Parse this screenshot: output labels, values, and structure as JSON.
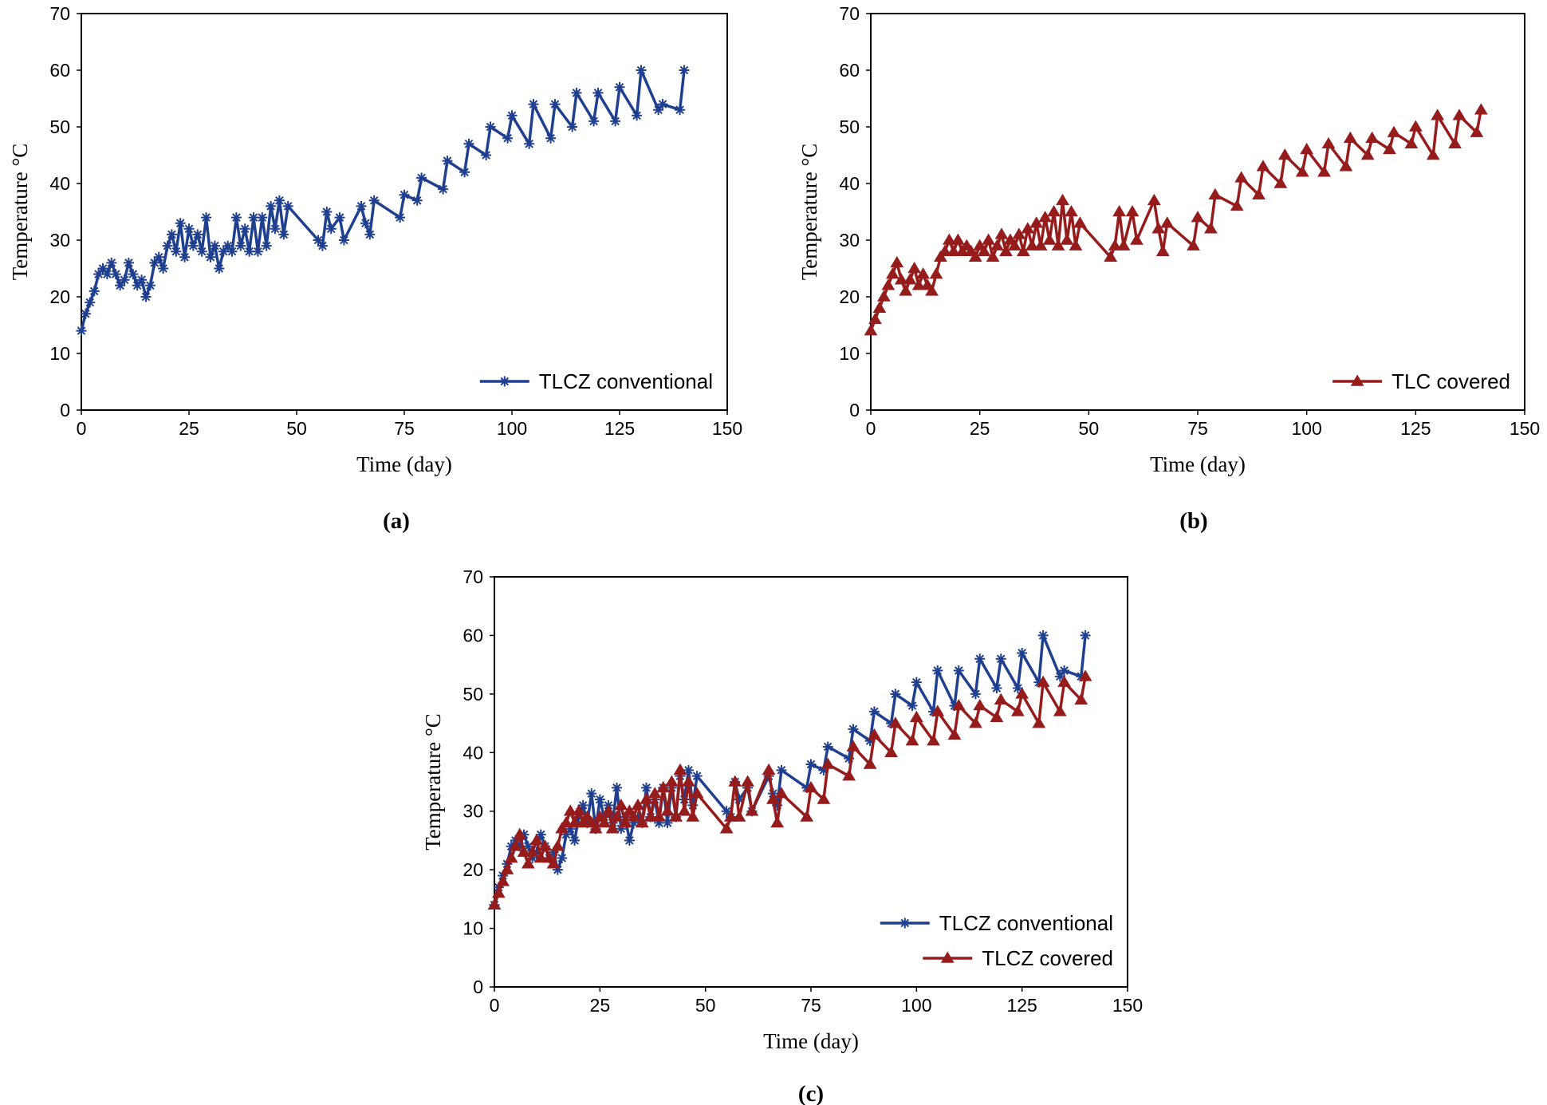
{
  "colors": {
    "conventional": "#1f3f8f",
    "covered": "#961c1c"
  },
  "chart_data": [
    {
      "id": "a",
      "panel_label": "(a)",
      "type": "line",
      "xlabel": "Time (day)",
      "ylabel": "Temperature °C",
      "xlim": [
        0,
        150
      ],
      "ylim": [
        0,
        70
      ],
      "xticks": [
        0,
        25,
        50,
        75,
        100,
        125,
        150
      ],
      "yticks": [
        0,
        10,
        20,
        30,
        40,
        50,
        60,
        70
      ],
      "legend_position": "bottom-right",
      "series": [
        {
          "name": "TLCZ conventional",
          "color": "#1f3f8f",
          "marker": "star",
          "x": [
            0,
            1,
            2,
            3,
            4,
            5,
            6,
            7,
            8,
            9,
            10,
            11,
            12,
            13,
            14,
            15,
            16,
            17,
            18,
            19,
            20,
            21,
            22,
            23,
            24,
            25,
            26,
            27,
            28,
            29,
            30,
            31,
            32,
            33,
            34,
            35,
            36,
            37,
            38,
            39,
            40,
            41,
            42,
            43,
            44,
            45,
            46,
            47,
            48,
            55,
            56,
            57,
            58,
            60,
            61,
            65,
            66,
            67,
            68,
            74,
            75,
            78,
            79,
            84,
            85,
            89,
            90,
            94,
            95,
            99,
            100,
            104,
            105,
            109,
            110,
            114,
            115,
            119,
            120,
            124,
            125,
            129,
            130,
            134,
            135,
            139,
            140
          ],
          "y": [
            14,
            17,
            19,
            21,
            24,
            25,
            24,
            26,
            24,
            22,
            23,
            26,
            24,
            22,
            23,
            20,
            22,
            26,
            27,
            25,
            29,
            31,
            28,
            33,
            27,
            32,
            29,
            31,
            28,
            34,
            27,
            29,
            25,
            28,
            29,
            28,
            34,
            29,
            32,
            28,
            34,
            28,
            34,
            29,
            36,
            32,
            37,
            31,
            36,
            30,
            29,
            35,
            32,
            34,
            30,
            36,
            33,
            31,
            37,
            34,
            38,
            37,
            41,
            39,
            44,
            42,
            47,
            45,
            50,
            48,
            52,
            47,
            54,
            48,
            54,
            50,
            56,
            51,
            56,
            51,
            57,
            52,
            60,
            53,
            54,
            53,
            60
          ]
        }
      ]
    },
    {
      "id": "b",
      "panel_label": "(b)",
      "type": "line",
      "xlabel": "Time (day)",
      "ylabel": "Temperature °C",
      "xlim": [
        0,
        150
      ],
      "ylim": [
        0,
        70
      ],
      "xticks": [
        0,
        25,
        50,
        75,
        100,
        125,
        150
      ],
      "yticks": [
        0,
        10,
        20,
        30,
        40,
        50,
        60,
        70
      ],
      "legend_position": "bottom-right",
      "series": [
        {
          "name": "TLC covered",
          "color": "#961c1c",
          "marker": "triangle",
          "x": [
            0,
            1,
            2,
            3,
            4,
            5,
            6,
            7,
            8,
            9,
            10,
            11,
            12,
            13,
            14,
            15,
            16,
            17,
            18,
            19,
            20,
            21,
            22,
            23,
            24,
            25,
            26,
            27,
            28,
            29,
            30,
            31,
            32,
            33,
            34,
            35,
            36,
            37,
            38,
            39,
            40,
            41,
            42,
            43,
            44,
            45,
            46,
            47,
            48,
            55,
            56,
            57,
            58,
            60,
            61,
            65,
            66,
            67,
            68,
            74,
            75,
            78,
            79,
            84,
            85,
            89,
            90,
            94,
            95,
            99,
            100,
            104,
            105,
            109,
            110,
            114,
            115,
            119,
            120,
            124,
            125,
            129,
            130,
            134,
            135,
            139,
            140
          ],
          "y": [
            14,
            16,
            18,
            20,
            22,
            24,
            26,
            23,
            21,
            23,
            25,
            22,
            24,
            22,
            21,
            24,
            27,
            28,
            30,
            28,
            30,
            28,
            29,
            28,
            27,
            29,
            28,
            30,
            27,
            29,
            31,
            28,
            30,
            29,
            31,
            28,
            32,
            29,
            33,
            29,
            34,
            30,
            35,
            29,
            37,
            30,
            35,
            29,
            33,
            27,
            29,
            35,
            29,
            35,
            30,
            37,
            32,
            28,
            33,
            29,
            34,
            32,
            38,
            36,
            41,
            38,
            43,
            40,
            45,
            42,
            46,
            42,
            47,
            43,
            48,
            45,
            48,
            46,
            49,
            47,
            50,
            45,
            52,
            47,
            52,
            49,
            53
          ]
        }
      ]
    },
    {
      "id": "c",
      "panel_label": "(c)",
      "type": "line",
      "xlabel": "Time (day)",
      "ylabel": "Temperature °C",
      "xlim": [
        0,
        150
      ],
      "ylim": [
        0,
        70
      ],
      "xticks": [
        0,
        25,
        50,
        75,
        100,
        125,
        150
      ],
      "yticks": [
        0,
        10,
        20,
        30,
        40,
        50,
        60,
        70
      ],
      "legend_position": "bottom-right",
      "series": [
        {
          "name": "TLCZ conventional",
          "color": "#1f3f8f",
          "marker": "star",
          "x": [
            0,
            1,
            2,
            3,
            4,
            5,
            6,
            7,
            8,
            9,
            10,
            11,
            12,
            13,
            14,
            15,
            16,
            17,
            18,
            19,
            20,
            21,
            22,
            23,
            24,
            25,
            26,
            27,
            28,
            29,
            30,
            31,
            32,
            33,
            34,
            35,
            36,
            37,
            38,
            39,
            40,
            41,
            42,
            43,
            44,
            45,
            46,
            47,
            48,
            55,
            56,
            57,
            58,
            60,
            61,
            65,
            66,
            67,
            68,
            74,
            75,
            78,
            79,
            84,
            85,
            89,
            90,
            94,
            95,
            99,
            100,
            104,
            105,
            109,
            110,
            114,
            115,
            119,
            120,
            124,
            125,
            129,
            130,
            134,
            135,
            139,
            140
          ],
          "y": [
            14,
            17,
            19,
            21,
            24,
            25,
            24,
            26,
            24,
            22,
            23,
            26,
            24,
            22,
            23,
            20,
            22,
            26,
            27,
            25,
            29,
            31,
            28,
            33,
            27,
            32,
            29,
            31,
            28,
            34,
            27,
            29,
            25,
            28,
            29,
            28,
            34,
            29,
            32,
            28,
            34,
            28,
            34,
            29,
            36,
            32,
            37,
            31,
            36,
            30,
            29,
            35,
            32,
            34,
            30,
            36,
            33,
            31,
            37,
            34,
            38,
            37,
            41,
            39,
            44,
            42,
            47,
            45,
            50,
            48,
            52,
            47,
            54,
            48,
            54,
            50,
            56,
            51,
            56,
            51,
            57,
            52,
            60,
            53,
            54,
            53,
            60
          ]
        },
        {
          "name": "TLCZ covered",
          "color": "#961c1c",
          "marker": "triangle",
          "x": [
            0,
            1,
            2,
            3,
            4,
            5,
            6,
            7,
            8,
            9,
            10,
            11,
            12,
            13,
            14,
            15,
            16,
            17,
            18,
            19,
            20,
            21,
            22,
            23,
            24,
            25,
            26,
            27,
            28,
            29,
            30,
            31,
            32,
            33,
            34,
            35,
            36,
            37,
            38,
            39,
            40,
            41,
            42,
            43,
            44,
            45,
            46,
            47,
            48,
            55,
            56,
            57,
            58,
            60,
            61,
            65,
            66,
            67,
            68,
            74,
            75,
            78,
            79,
            84,
            85,
            89,
            90,
            94,
            95,
            99,
            100,
            104,
            105,
            109,
            110,
            114,
            115,
            119,
            120,
            124,
            125,
            129,
            130,
            134,
            135,
            139,
            140
          ],
          "y": [
            14,
            16,
            18,
            20,
            22,
            24,
            26,
            23,
            21,
            23,
            25,
            22,
            24,
            22,
            21,
            24,
            27,
            28,
            30,
            28,
            30,
            28,
            29,
            28,
            27,
            29,
            28,
            30,
            27,
            29,
            31,
            28,
            30,
            29,
            31,
            28,
            32,
            29,
            33,
            29,
            34,
            30,
            35,
            29,
            37,
            30,
            35,
            29,
            33,
            27,
            29,
            35,
            29,
            35,
            30,
            37,
            32,
            28,
            33,
            29,
            34,
            32,
            38,
            36,
            41,
            38,
            43,
            40,
            45,
            42,
            46,
            42,
            47,
            43,
            48,
            45,
            48,
            46,
            49,
            47,
            50,
            45,
            52,
            47,
            52,
            49,
            53
          ]
        }
      ]
    }
  ]
}
